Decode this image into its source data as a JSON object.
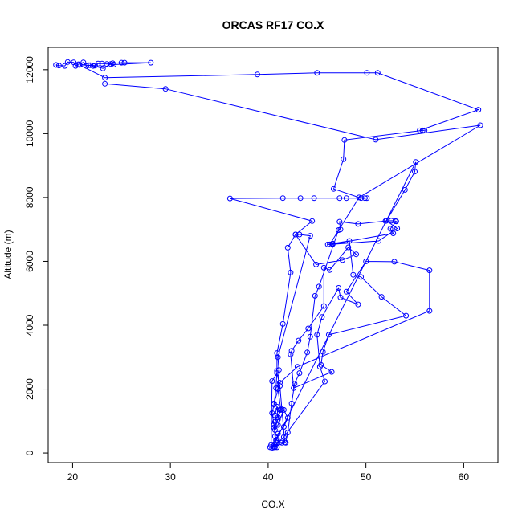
{
  "chart_data": {
    "type": "line",
    "title": "ORCAS RF17 CO.X",
    "xlabel": "CO.X",
    "ylabel": "Altitude (m)",
    "xlim": [
      17.5,
      63.5
    ],
    "ylim": [
      -300,
      12700
    ],
    "xticks": [
      20,
      30,
      40,
      50,
      60
    ],
    "yticks": [
      0,
      2000,
      4000,
      6000,
      8000,
      10000,
      12000
    ],
    "grid": false,
    "legend": "none",
    "series": [
      {
        "color": "#0000ff",
        "marker": "open-circle",
        "points": [
          [
            18.3,
            12150
          ],
          [
            18.6,
            12130
          ],
          [
            19.2,
            12120
          ],
          [
            19.5,
            12240
          ],
          [
            20.1,
            12230
          ],
          [
            20.3,
            12120
          ],
          [
            20.6,
            12170
          ],
          [
            21.1,
            12230
          ],
          [
            21.4,
            12120
          ],
          [
            21.8,
            12140
          ],
          [
            22.3,
            12130
          ],
          [
            22.6,
            12190
          ],
          [
            23.0,
            12190
          ],
          [
            23.5,
            12180
          ],
          [
            24.1,
            12200
          ],
          [
            25.0,
            12220
          ],
          [
            25.3,
            12220
          ],
          [
            28.0,
            12220
          ],
          [
            24.2,
            12160
          ],
          [
            23.9,
            12180
          ],
          [
            23.1,
            12040
          ],
          [
            22.1,
            12120
          ],
          [
            21.6,
            12140
          ],
          [
            20.7,
            12150
          ],
          [
            23.3,
            11750
          ],
          [
            38.9,
            11850
          ],
          [
            45.0,
            11900
          ],
          [
            50.1,
            11900
          ],
          [
            51.2,
            11900
          ],
          [
            61.5,
            10750
          ],
          [
            55.5,
            10100
          ],
          [
            56.0,
            10100
          ],
          [
            55.8,
            10100
          ],
          [
            47.8,
            9800
          ],
          [
            47.7,
            9200
          ],
          [
            46.7,
            8270
          ],
          [
            49.5,
            7980
          ],
          [
            50.1,
            7980
          ],
          [
            49.9,
            7980
          ],
          [
            47.3,
            7980
          ],
          [
            48.0,
            7980
          ],
          [
            44.7,
            7980
          ],
          [
            43.3,
            7980
          ],
          [
            41.5,
            7980
          ],
          [
            36.1,
            7970
          ],
          [
            44.5,
            7260
          ],
          [
            42.8,
            6840
          ],
          [
            42.0,
            6430
          ],
          [
            42.3,
            5650
          ],
          [
            41.5,
            4040
          ],
          [
            40.9,
            3130
          ],
          [
            40.9,
            2570
          ],
          [
            40.8,
            2030
          ],
          [
            40.6,
            1520
          ],
          [
            40.4,
            1250
          ],
          [
            40.6,
            880
          ],
          [
            40.7,
            520
          ],
          [
            40.8,
            330
          ],
          [
            40.5,
            200
          ],
          [
            40.2,
            180
          ],
          [
            40.7,
            180
          ],
          [
            40.9,
            180
          ],
          [
            40.9,
            320
          ],
          [
            41.4,
            320
          ],
          [
            41.8,
            320
          ],
          [
            42.0,
            640
          ],
          [
            42.4,
            1550
          ],
          [
            42.7,
            2170
          ],
          [
            43.2,
            2500
          ],
          [
            44.0,
            3150
          ],
          [
            44.3,
            3640
          ],
          [
            44.8,
            4920
          ],
          [
            45.2,
            5210
          ],
          [
            47.2,
            6980
          ],
          [
            47.4,
            7000
          ],
          [
            47.3,
            7240
          ],
          [
            49.2,
            7170
          ],
          [
            52.0,
            7260
          ],
          [
            52.6,
            7270
          ],
          [
            53.0,
            7260
          ],
          [
            53.1,
            7250
          ],
          [
            52.5,
            7020
          ],
          [
            52.8,
            6880
          ],
          [
            46.6,
            6540
          ],
          [
            46.1,
            6530
          ],
          [
            46.6,
            6560
          ],
          [
            48.3,
            6640
          ],
          [
            48.7,
            5580
          ],
          [
            49.5,
            5510
          ],
          [
            51.6,
            4890
          ],
          [
            54.1,
            4300
          ],
          [
            46.2,
            3700
          ],
          [
            45.6,
            3170
          ],
          [
            45.4,
            2760
          ],
          [
            46.5,
            2540
          ],
          [
            42.6,
            2030
          ],
          [
            42.3,
            3090
          ],
          [
            42.4,
            3200
          ],
          [
            43.1,
            3520
          ],
          [
            44.1,
            3900
          ],
          [
            45.7,
            4600
          ],
          [
            45.7,
            5800
          ],
          [
            46.3,
            5730
          ],
          [
            48.2,
            6440
          ],
          [
            49.0,
            6220
          ],
          [
            47.6,
            6040
          ],
          [
            44.9,
            5900
          ],
          [
            42.8,
            6840
          ],
          [
            43.2,
            6840
          ],
          [
            44.3,
            6800
          ],
          [
            41.0,
            3000
          ],
          [
            41.1,
            2600
          ],
          [
            41.0,
            2000
          ],
          [
            41.3,
            1350
          ],
          [
            41.0,
            1120
          ],
          [
            40.9,
            1450
          ],
          [
            40.7,
            1180
          ],
          [
            40.7,
            980
          ],
          [
            40.7,
            720
          ],
          [
            41.0,
            880
          ],
          [
            41.6,
            1350
          ],
          [
            42.0,
            1100
          ],
          [
            41.6,
            820
          ],
          [
            41.0,
            600
          ],
          [
            40.9,
            420
          ],
          [
            40.3,
            250
          ],
          [
            40.4,
            2250
          ],
          [
            40.9,
            2500
          ],
          [
            41.2,
            2100
          ],
          [
            41.4,
            1370
          ],
          [
            41.7,
            330
          ],
          [
            40.6,
            180
          ],
          [
            40.4,
            160
          ],
          [
            41.6,
            500
          ],
          [
            45.8,
            2240
          ],
          [
            45.3,
            2700
          ],
          [
            45.0,
            3700
          ],
          [
            45.5,
            4260
          ],
          [
            47.2,
            5170
          ],
          [
            47.4,
            4870
          ],
          [
            49.2,
            4650
          ],
          [
            48.0,
            5050
          ],
          [
            50.0,
            6000
          ],
          [
            52.9,
            5990
          ],
          [
            56.5,
            5720
          ],
          [
            56.5,
            4450
          ],
          [
            43.0,
            2700
          ],
          [
            41.2,
            2200
          ],
          [
            40.6,
            1550
          ],
          [
            41.2,
            1350
          ],
          [
            41.0,
            1050
          ],
          [
            40.6,
            800
          ],
          [
            40.8,
            400
          ],
          [
            55.1,
            9110
          ],
          [
            55.0,
            8810
          ],
          [
            54.0,
            8240
          ],
          [
            52.1,
            7270
          ],
          [
            53.2,
            7030
          ],
          [
            51.3,
            6640
          ],
          [
            46.3,
            6530
          ],
          [
            49.3,
            8000
          ],
          [
            61.7,
            10260
          ],
          [
            51.0,
            9810
          ],
          [
            29.5,
            11400
          ],
          [
            23.3,
            11560
          ]
        ]
      }
    ]
  }
}
